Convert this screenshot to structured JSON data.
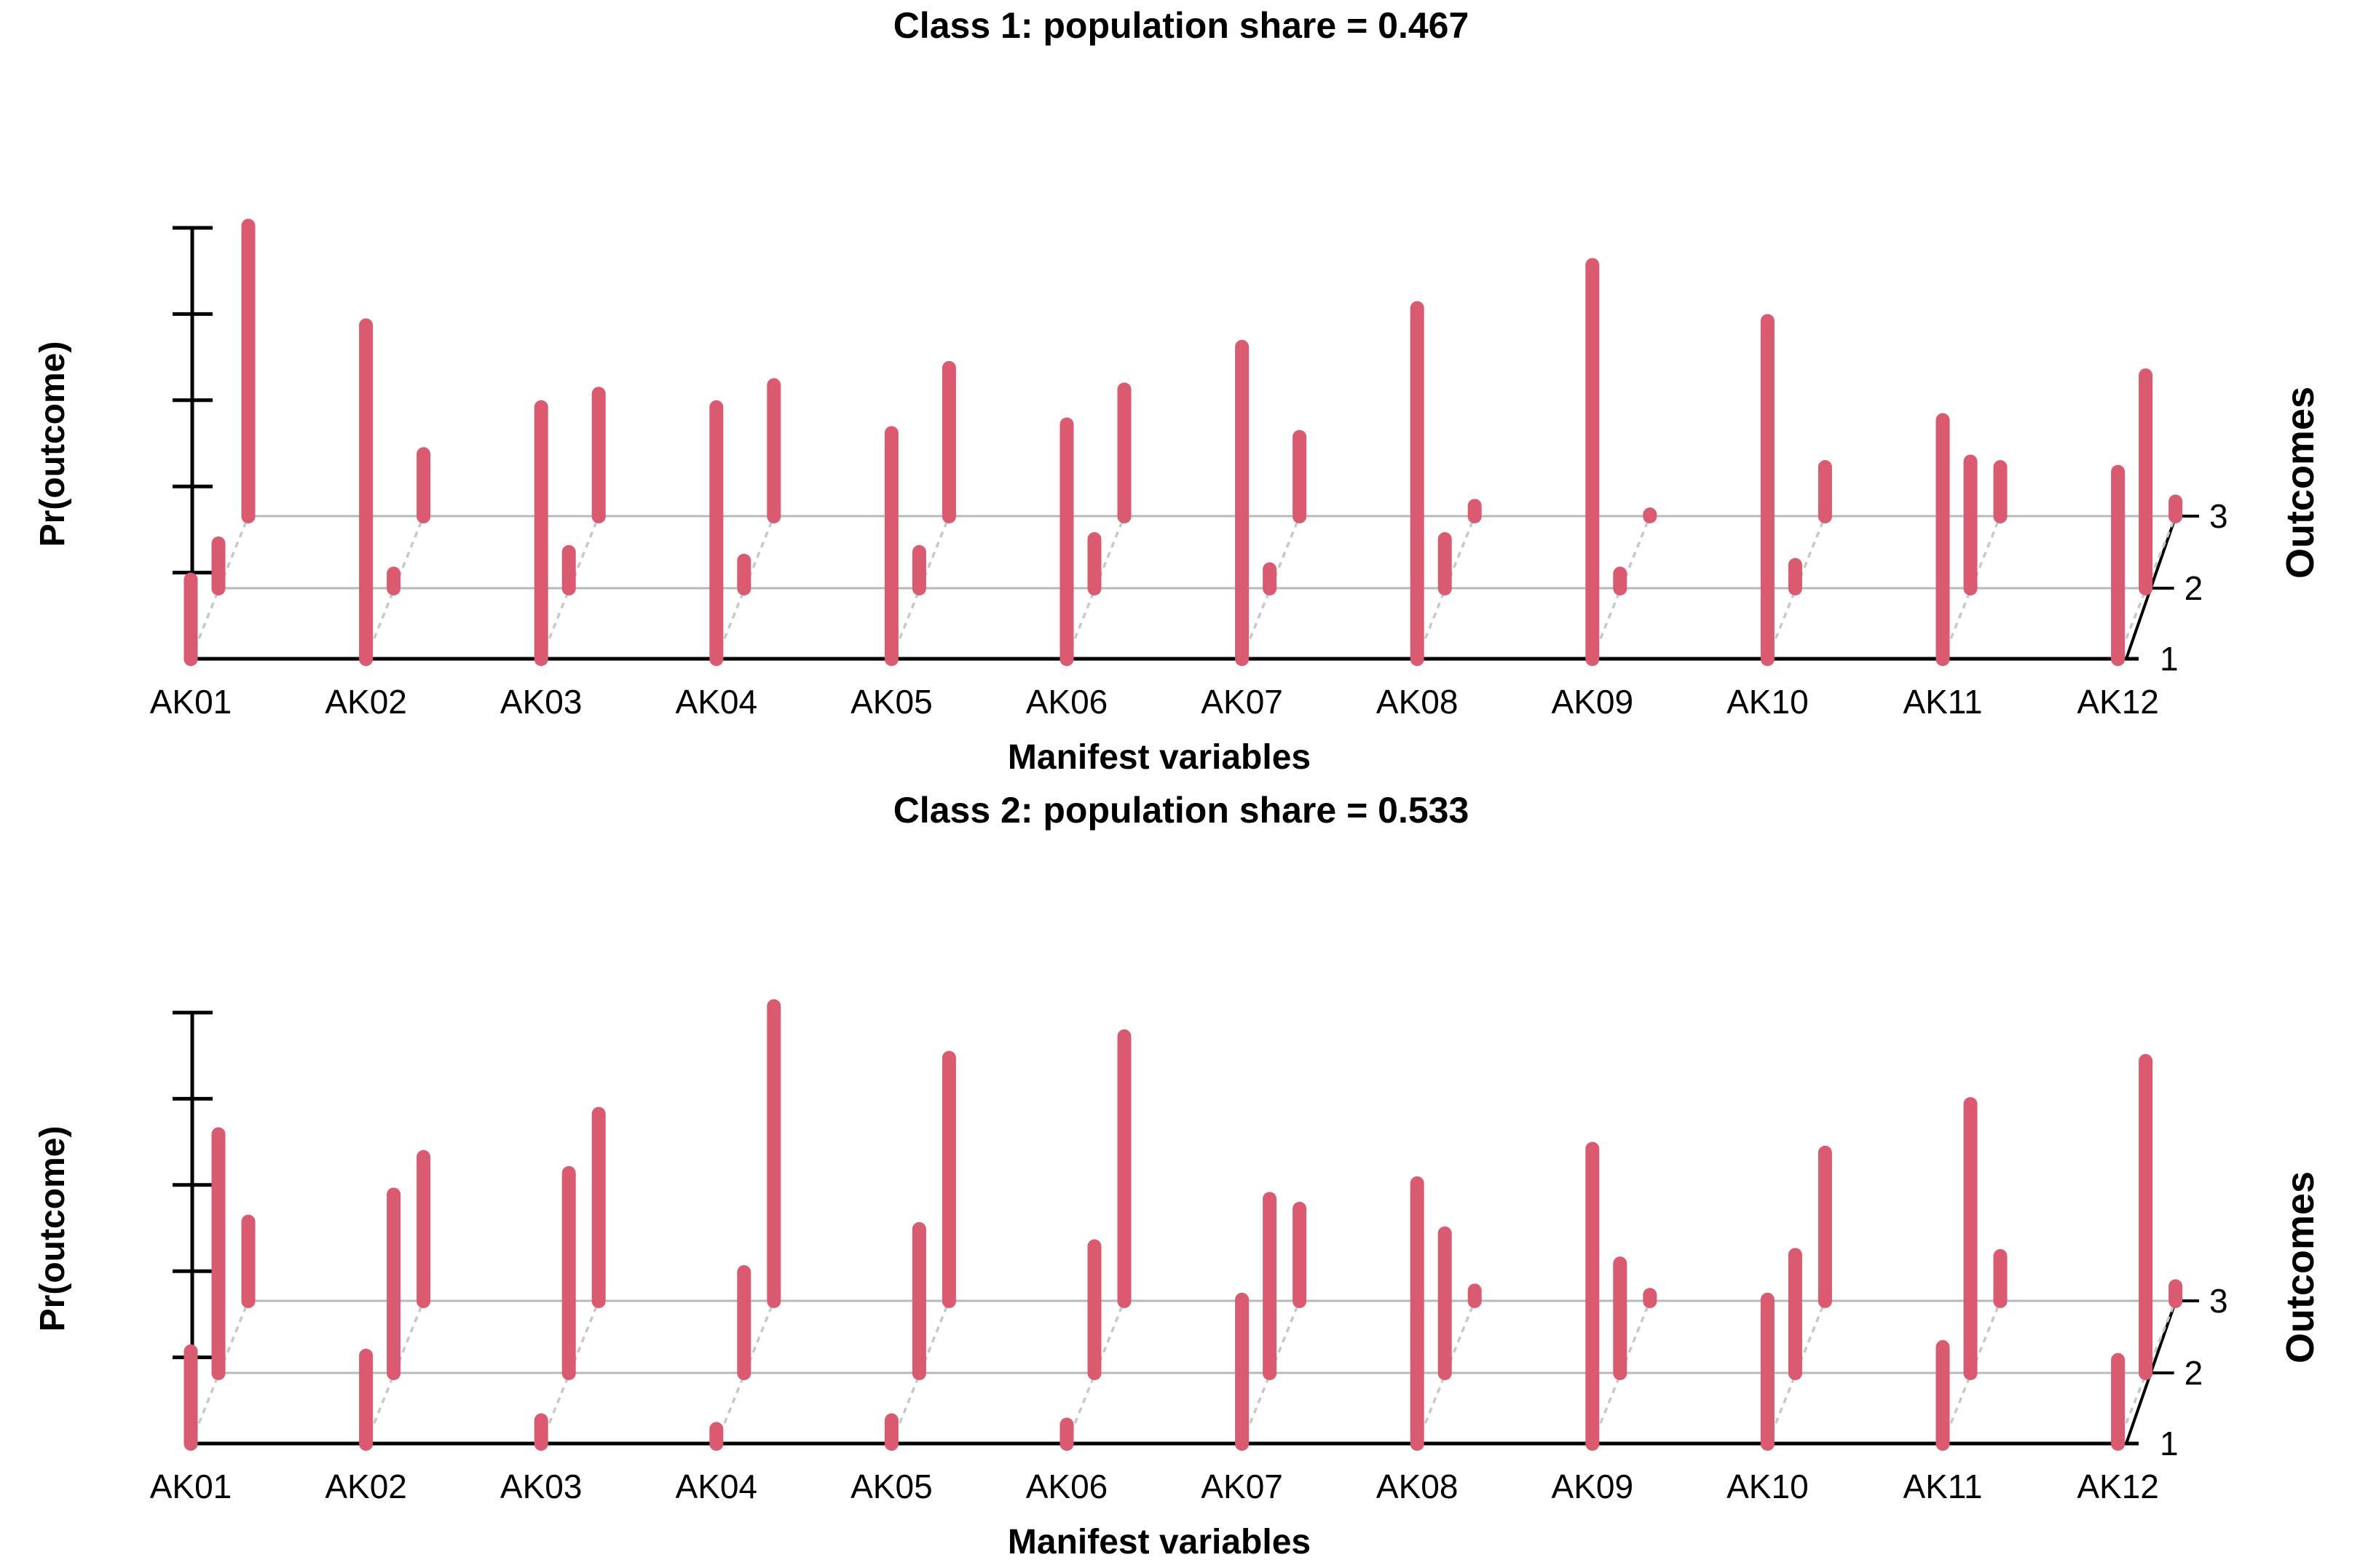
{
  "page": {
    "background": "#ffffff",
    "bar_color": "#da5a6f",
    "grid_color": "#b9b9b9",
    "connector_color": "#c8c8c8",
    "axis_color": "#000000"
  },
  "chart_data": [
    {
      "type": "bar",
      "variant": "3d-lollipop-bars (poLCA latent class plot)",
      "title": "Class 1: population share = 0.467",
      "population_share": 0.467,
      "xlabel": "Manifest variables",
      "ylabel": "Pr(outcome)",
      "zlabel": "Outcomes",
      "ylim": [
        0,
        1
      ],
      "y_ticks": [
        0.2,
        0.4,
        0.6,
        0.8,
        1.0
      ],
      "legend_position": "none",
      "grid": true,
      "categories": [
        "AK01",
        "AK02",
        "AK03",
        "AK04",
        "AK05",
        "AK06",
        "AK07",
        "AK08",
        "AK09",
        "AK10",
        "AK11",
        "AK12"
      ],
      "outcome_levels": [
        "1",
        "2",
        "3"
      ],
      "series": [
        {
          "name": "Outcome 1",
          "values": [
            0.2,
            0.79,
            0.6,
            0.6,
            0.54,
            0.56,
            0.74,
            0.83,
            0.93,
            0.8,
            0.57,
            0.45
          ]
        },
        {
          "name": "Outcome 2",
          "values": [
            0.12,
            0.05,
            0.1,
            0.08,
            0.1,
            0.13,
            0.06,
            0.13,
            0.05,
            0.07,
            0.31,
            0.51
          ]
        },
        {
          "name": "Outcome 3",
          "values": [
            0.69,
            0.16,
            0.3,
            0.32,
            0.36,
            0.31,
            0.2,
            0.04,
            0.02,
            0.13,
            0.13,
            0.05
          ]
        }
      ]
    },
    {
      "type": "bar",
      "variant": "3d-lollipop-bars (poLCA latent class plot)",
      "title": "Class 2: population share = 0.533",
      "population_share": 0.533,
      "xlabel": "Manifest variables",
      "ylabel": "Pr(outcome)",
      "zlabel": "Outcomes",
      "ylim": [
        0,
        1
      ],
      "y_ticks": [
        0.2,
        0.4,
        0.6,
        0.8,
        1.0
      ],
      "legend_position": "none",
      "grid": true,
      "categories": [
        "AK01",
        "AK02",
        "AK03",
        "AK04",
        "AK05",
        "AK06",
        "AK07",
        "AK08",
        "AK09",
        "AK10",
        "AK11",
        "AK12"
      ],
      "outcome_levels": [
        "1",
        "2",
        "3"
      ],
      "series": [
        {
          "name": "Outcome 1",
          "values": [
            0.23,
            0.22,
            0.07,
            0.05,
            0.07,
            0.06,
            0.35,
            0.62,
            0.7,
            0.35,
            0.24,
            0.21
          ]
        },
        {
          "name": "Outcome 2",
          "values": [
            0.57,
            0.43,
            0.48,
            0.25,
            0.35,
            0.31,
            0.42,
            0.34,
            0.27,
            0.29,
            0.64,
            0.74
          ]
        },
        {
          "name": "Outcome 3",
          "values": [
            0.2,
            0.35,
            0.45,
            0.7,
            0.58,
            0.63,
            0.23,
            0.04,
            0.03,
            0.36,
            0.12,
            0.05
          ]
        }
      ]
    }
  ]
}
